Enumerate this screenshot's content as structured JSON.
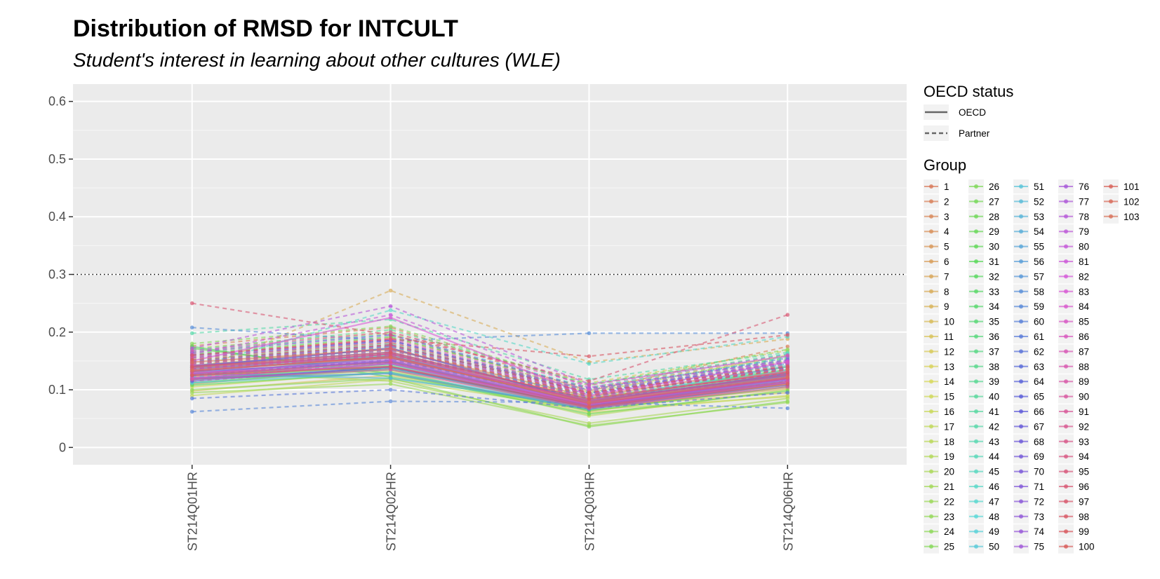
{
  "chart_data": {
    "type": "line",
    "title": "Distribution of RMSD for INTCULT",
    "subtitle": "Student's interest in learning about other cultures (WLE)",
    "xlabel": "",
    "ylabel": "",
    "categories": [
      "ST214Q01HR",
      "ST214Q02HR",
      "ST214Q03HR",
      "ST214Q06HR"
    ],
    "y_ticks": [
      0,
      0.1,
      0.2,
      0.3,
      0.4,
      0.5,
      0.6
    ],
    "y_tick_labels": [
      "0",
      "0.1",
      "0.2",
      "0.3",
      "0.4",
      "0.5",
      "0.6"
    ],
    "ylim": [
      -0.03,
      0.63
    ],
    "reference_line": 0.3,
    "grid": true,
    "panel_background": "#ebebeb",
    "legend_position": "right",
    "legend": {
      "linetype_title": "OECD status",
      "linetype_items": [
        {
          "label": "OECD",
          "linetype": "solid"
        },
        {
          "label": "Partner",
          "linetype": "dashed"
        }
      ],
      "color_title": "Group",
      "color_items": [
        "1",
        "2",
        "3",
        "4",
        "5",
        "6",
        "7",
        "8",
        "9",
        "10",
        "11",
        "12",
        "13",
        "14",
        "15",
        "16",
        "17",
        "18",
        "19",
        "20",
        "21",
        "22",
        "23",
        "24",
        "25",
        "26",
        "27",
        "28",
        "29",
        "30",
        "31",
        "32",
        "33",
        "34",
        "35",
        "36",
        "37",
        "38",
        "39",
        "40",
        "41",
        "42",
        "43",
        "44",
        "45",
        "46",
        "47",
        "48",
        "49",
        "50",
        "51",
        "52",
        "53",
        "54",
        "55",
        "56",
        "57",
        "58",
        "59",
        "60",
        "61",
        "62",
        "63",
        "64",
        "65",
        "66",
        "67",
        "68",
        "69",
        "70",
        "71",
        "72",
        "73",
        "74",
        "75",
        "76",
        "77",
        "78",
        "79",
        "80",
        "81",
        "82",
        "83",
        "84",
        "85",
        "86",
        "87",
        "88",
        "89",
        "90",
        "91",
        "92",
        "93",
        "94",
        "95",
        "96",
        "97",
        "98",
        "99",
        "100",
        "101",
        "102",
        "103"
      ]
    },
    "series": [
      {
        "name": "1",
        "status": "OECD",
        "values": [
          0.148,
          0.17,
          0.088,
          0.14
        ]
      },
      {
        "name": "2",
        "status": "Partner",
        "values": [
          0.176,
          0.208,
          0.098,
          0.175
        ]
      },
      {
        "name": "3",
        "status": "OECD",
        "values": [
          0.122,
          0.15,
          0.072,
          0.118
        ]
      },
      {
        "name": "4",
        "status": "OECD",
        "values": [
          0.135,
          0.162,
          0.085,
          0.132
        ]
      },
      {
        "name": "5",
        "status": "Partner",
        "values": [
          0.16,
          0.19,
          0.104,
          0.158
        ]
      },
      {
        "name": "6",
        "status": "OECD",
        "values": [
          0.11,
          0.14,
          0.068,
          0.102
        ]
      },
      {
        "name": "7",
        "status": "OECD",
        "values": [
          0.142,
          0.172,
          0.08,
          0.128
        ]
      },
      {
        "name": "8",
        "status": "Partner",
        "values": [
          0.13,
          0.272,
          0.148,
          0.188
        ]
      },
      {
        "name": "9",
        "status": "Partner",
        "values": [
          0.115,
          0.138,
          0.075,
          0.122
        ]
      },
      {
        "name": "10",
        "status": "OECD",
        "values": [
          0.128,
          0.156,
          0.062,
          0.11
        ]
      },
      {
        "name": "11",
        "status": "OECD",
        "values": [
          0.098,
          0.125,
          0.07,
          0.095
        ]
      },
      {
        "name": "12",
        "status": "Partner",
        "values": [
          0.172,
          0.2,
          0.112,
          0.168
        ]
      },
      {
        "name": "13",
        "status": "OECD",
        "values": [
          0.118,
          0.145,
          0.078,
          0.108
        ]
      },
      {
        "name": "14",
        "status": "Partner",
        "values": [
          0.14,
          0.168,
          0.09,
          0.15
        ]
      },
      {
        "name": "15",
        "status": "OECD",
        "values": [
          0.105,
          0.132,
          0.06,
          0.09
        ]
      },
      {
        "name": "16",
        "status": "Partner",
        "values": [
          0.155,
          0.182,
          0.1,
          0.142
        ]
      },
      {
        "name": "17",
        "status": "OECD",
        "values": [
          0.09,
          0.118,
          0.065,
          0.088
        ]
      },
      {
        "name": "18",
        "status": "Partner",
        "values": [
          0.165,
          0.198,
          0.095,
          0.16
        ]
      },
      {
        "name": "19",
        "status": "OECD",
        "values": [
          0.112,
          0.135,
          0.055,
          0.1
        ]
      },
      {
        "name": "20",
        "status": "OECD",
        "values": [
          0.132,
          0.115,
          0.042,
          0.085
        ]
      },
      {
        "name": "21",
        "status": "Partner",
        "values": [
          0.15,
          0.176,
          0.085,
          0.135
        ]
      },
      {
        "name": "22",
        "status": "OECD",
        "values": [
          0.095,
          0.11,
          0.038,
          0.078
        ]
      },
      {
        "name": "23",
        "status": "Partner",
        "values": [
          0.125,
          0.152,
          0.07,
          0.115
        ]
      },
      {
        "name": "24",
        "status": "OECD",
        "values": [
          0.1,
          0.12,
          0.036,
          0.08
        ]
      },
      {
        "name": "25",
        "status": "Partner",
        "values": [
          0.18,
          0.21,
          0.108,
          0.17
        ]
      },
      {
        "name": "26",
        "status": "OECD",
        "values": [
          0.138,
          0.16,
          0.075,
          0.125
        ]
      },
      {
        "name": "27",
        "status": "Partner",
        "values": [
          0.12,
          0.148,
          0.082,
          0.13
        ]
      },
      {
        "name": "28",
        "status": "OECD",
        "values": [
          0.172,
          0.128,
          0.058,
          0.098
        ]
      },
      {
        "name": "29",
        "status": "Partner",
        "values": [
          0.145,
          0.175,
          0.092,
          0.145
        ]
      },
      {
        "name": "30",
        "status": "OECD",
        "values": [
          0.108,
          0.13,
          0.064,
          0.105
        ]
      },
      {
        "name": "31",
        "status": "Partner",
        "values": [
          0.162,
          0.192,
          0.102,
          0.155
        ]
      },
      {
        "name": "32",
        "status": "OECD",
        "values": [
          0.128,
          0.14,
          0.07,
          0.118
        ]
      },
      {
        "name": "33",
        "status": "OECD",
        "values": [
          0.175,
          0.122,
          0.068,
          0.128
        ]
      },
      {
        "name": "34",
        "status": "Partner",
        "values": [
          0.136,
          0.164,
          0.088,
          0.138
        ]
      },
      {
        "name": "35",
        "status": "OECD",
        "values": [
          0.118,
          0.142,
          0.074,
          0.112
        ]
      },
      {
        "name": "36",
        "status": "Partner",
        "values": [
          0.158,
          0.186,
          0.098,
          0.152
        ]
      },
      {
        "name": "37",
        "status": "OECD",
        "values": [
          0.142,
          0.155,
          0.082,
          0.135
        ]
      },
      {
        "name": "38",
        "status": "Partner",
        "values": [
          0.17,
          0.204,
          0.11,
          0.162
        ]
      },
      {
        "name": "39",
        "status": "OECD",
        "values": [
          0.112,
          0.138,
          0.066,
          0.125
        ]
      },
      {
        "name": "40",
        "status": "Partner",
        "values": [
          0.152,
          0.18,
          0.094,
          0.148
        ]
      },
      {
        "name": "41",
        "status": "OECD",
        "values": [
          0.135,
          0.158,
          0.076,
          0.14
        ]
      },
      {
        "name": "42",
        "status": "Partner",
        "values": [
          0.198,
          0.222,
          0.118,
          0.165
        ]
      },
      {
        "name": "43",
        "status": "OECD",
        "values": [
          0.125,
          0.15,
          0.072,
          0.12
        ]
      },
      {
        "name": "44",
        "status": "Partner",
        "values": [
          0.145,
          0.17,
          0.09,
          0.158
        ]
      },
      {
        "name": "45",
        "status": "OECD",
        "values": [
          0.118,
          0.135,
          0.078,
          0.132
        ]
      },
      {
        "name": "46",
        "status": "Partner",
        "values": [
          0.138,
          0.238,
          0.145,
          0.192
        ]
      },
      {
        "name": "47",
        "status": "OECD",
        "values": [
          0.13,
          0.145,
          0.07,
          0.128
        ]
      },
      {
        "name": "48",
        "status": "Partner",
        "values": [
          0.168,
          0.196,
          0.104,
          0.162
        ]
      },
      {
        "name": "49",
        "status": "OECD",
        "values": [
          0.14,
          0.16,
          0.08,
          0.142
        ]
      },
      {
        "name": "50",
        "status": "Partner",
        "values": [
          0.122,
          0.148,
          0.086,
          0.135
        ]
      },
      {
        "name": "51",
        "status": "OECD",
        "values": [
          0.112,
          0.13,
          0.068,
          0.118
        ]
      },
      {
        "name": "52",
        "status": "Partner",
        "values": [
          0.155,
          0.185,
          0.095,
          0.15
        ]
      },
      {
        "name": "53",
        "status": "OECD",
        "values": [
          0.128,
          0.12,
          0.072,
          0.13
        ]
      },
      {
        "name": "54",
        "status": "Partner",
        "values": [
          0.132,
          0.16,
          0.092,
          0.145
        ]
      },
      {
        "name": "55",
        "status": "OECD",
        "values": [
          0.138,
          0.15,
          0.075,
          0.122
        ]
      },
      {
        "name": "56",
        "status": "Partner",
        "values": [
          0.148,
          0.175,
          0.1,
          0.155
        ]
      },
      {
        "name": "57",
        "status": "OECD",
        "values": [
          0.12,
          0.128,
          0.066,
          0.112
        ]
      },
      {
        "name": "58",
        "status": "Partner",
        "values": [
          0.208,
          0.185,
          0.198,
          0.198
        ]
      },
      {
        "name": "59",
        "status": "Partner",
        "values": [
          0.062,
          0.08,
          0.078,
          0.068
        ]
      },
      {
        "name": "60",
        "status": "OECD",
        "values": [
          0.142,
          0.165,
          0.082,
          0.125
        ]
      },
      {
        "name": "61",
        "status": "Partner",
        "values": [
          0.085,
          0.1,
          0.068,
          0.095
        ]
      },
      {
        "name": "62",
        "status": "OECD",
        "values": [
          0.118,
          0.138,
          0.07,
          0.115
        ]
      },
      {
        "name": "63",
        "status": "Partner",
        "values": [
          0.125,
          0.152,
          0.085,
          0.118
        ]
      },
      {
        "name": "64",
        "status": "OECD",
        "values": [
          0.132,
          0.148,
          0.072,
          0.12
        ]
      },
      {
        "name": "65",
        "status": "Partner",
        "values": [
          0.16,
          0.186,
          0.094,
          0.148
        ]
      },
      {
        "name": "66",
        "status": "OECD",
        "values": [
          0.14,
          0.172,
          0.078,
          0.128
        ]
      },
      {
        "name": "67",
        "status": "Partner",
        "values": [
          0.136,
          0.162,
          0.088,
          0.138
        ]
      },
      {
        "name": "68",
        "status": "OECD",
        "values": [
          0.115,
          0.14,
          0.07,
          0.108
        ]
      },
      {
        "name": "69",
        "status": "Partner",
        "values": [
          0.15,
          0.178,
          0.095,
          0.14
        ]
      },
      {
        "name": "70",
        "status": "OECD",
        "values": [
          0.128,
          0.155,
          0.076,
          0.118
        ]
      },
      {
        "name": "71",
        "status": "Partner",
        "values": [
          0.165,
          0.195,
          0.102,
          0.152
        ]
      },
      {
        "name": "72",
        "status": "OECD",
        "values": [
          0.12,
          0.145,
          0.072,
          0.112
        ]
      },
      {
        "name": "73",
        "status": "Partner",
        "values": [
          0.142,
          0.168,
          0.09,
          0.135
        ]
      },
      {
        "name": "74",
        "status": "OECD",
        "values": [
          0.132,
          0.158,
          0.08,
          0.125
        ]
      },
      {
        "name": "75",
        "status": "Partner",
        "values": [
          0.156,
          0.185,
          0.098,
          0.145
        ]
      },
      {
        "name": "76",
        "status": "OECD",
        "values": [
          0.124,
          0.15,
          0.074,
          0.115
        ]
      },
      {
        "name": "77",
        "status": "Partner",
        "values": [
          0.148,
          0.176,
          0.092,
          0.14
        ]
      },
      {
        "name": "78",
        "status": "Partner",
        "values": [
          0.172,
          0.245,
          0.11,
          0.158
        ]
      },
      {
        "name": "79",
        "status": "OECD",
        "values": [
          0.135,
          0.162,
          0.078,
          0.122
        ]
      },
      {
        "name": "80",
        "status": "Partner",
        "values": [
          0.162,
          0.23,
          0.104,
          0.15
        ]
      },
      {
        "name": "81",
        "status": "OECD",
        "values": [
          0.128,
          0.152,
          0.075,
          0.118
        ]
      },
      {
        "name": "82",
        "status": "Partner",
        "values": [
          0.145,
          0.172,
          0.094,
          0.136
        ]
      },
      {
        "name": "83",
        "status": "OECD",
        "values": [
          0.15,
          0.225,
          0.09,
          0.148
        ]
      },
      {
        "name": "84",
        "status": "Partner",
        "values": [
          0.138,
          0.165,
          0.086,
          0.13
        ]
      },
      {
        "name": "85",
        "status": "OECD",
        "values": [
          0.12,
          0.146,
          0.07,
          0.112
        ]
      },
      {
        "name": "86",
        "status": "Partner",
        "values": [
          0.158,
          0.188,
          0.1,
          0.148
        ]
      },
      {
        "name": "87",
        "status": "OECD",
        "values": [
          0.13,
          0.14,
          0.076,
          0.12
        ]
      },
      {
        "name": "88",
        "status": "Partner",
        "values": [
          0.168,
          0.2,
          0.108,
          0.16
        ]
      },
      {
        "name": "89",
        "status": "OECD",
        "values": [
          0.142,
          0.155,
          0.082,
          0.132
        ]
      },
      {
        "name": "90",
        "status": "Partner",
        "values": [
          0.135,
          0.16,
          0.088,
          0.128
        ]
      },
      {
        "name": "91",
        "status": "OECD",
        "values": [
          0.118,
          0.135,
          0.068,
          0.105
        ]
      },
      {
        "name": "92",
        "status": "Partner",
        "values": [
          0.155,
          0.182,
          0.096,
          0.142
        ]
      },
      {
        "name": "93",
        "status": "OECD",
        "values": [
          0.126,
          0.148,
          0.072,
          0.114
        ]
      },
      {
        "name": "94",
        "status": "Partner",
        "values": [
          0.145,
          0.17,
          0.092,
          0.136
        ]
      },
      {
        "name": "95",
        "status": "OECD",
        "values": [
          0.138,
          0.162,
          0.08,
          0.126
        ]
      },
      {
        "name": "96",
        "status": "Partner",
        "values": [
          0.25,
          0.195,
          0.115,
          0.23
        ]
      },
      {
        "name": "97",
        "status": "OECD",
        "values": [
          0.132,
          0.158,
          0.076,
          0.12
        ]
      },
      {
        "name": "98",
        "status": "Partner",
        "values": [
          0.16,
          0.188,
          0.158,
          0.195
        ]
      },
      {
        "name": "99",
        "status": "OECD",
        "values": [
          0.14,
          0.165,
          0.084,
          0.13
        ]
      },
      {
        "name": "100",
        "status": "Partner",
        "values": [
          0.152,
          0.178,
          0.095,
          0.14
        ]
      },
      {
        "name": "101",
        "status": "OECD",
        "values": [
          0.125,
          0.14,
          0.07,
          0.11
        ]
      },
      {
        "name": "102",
        "status": "Partner",
        "values": [
          0.148,
          0.172,
          0.09,
          0.135
        ]
      },
      {
        "name": "103",
        "status": "OECD",
        "values": [
          0.134,
          0.156,
          0.078,
          0.122
        ]
      }
    ]
  }
}
